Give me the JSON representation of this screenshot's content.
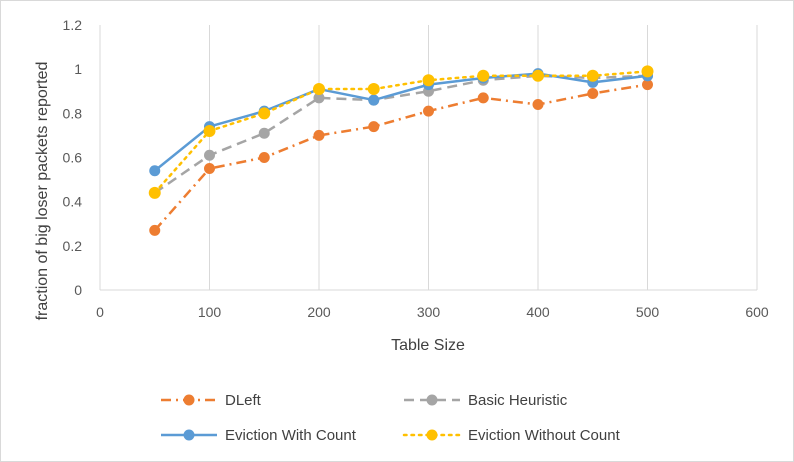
{
  "chart_data": {
    "type": "line",
    "title": "",
    "xlabel": "Table Size",
    "ylabel": "fraction of big loser packets reported",
    "xlim": [
      0,
      600
    ],
    "ylim": [
      0,
      1.2
    ],
    "xticks": [
      "0",
      "100",
      "200",
      "300",
      "400",
      "500",
      "600"
    ],
    "yticks": [
      "0",
      "0.2",
      "0.4",
      "0.6",
      "0.8",
      "1",
      "1.2"
    ],
    "grid": "vertical",
    "legend_position": "bottom",
    "x": [
      50,
      100,
      150,
      200,
      250,
      300,
      350,
      400,
      450,
      500
    ],
    "series": [
      {
        "name": "DLeft",
        "color": "#ED7D31",
        "style": "dash-dot",
        "marker": "circle",
        "values": [
          0.27,
          0.55,
          0.6,
          0.7,
          0.74,
          0.81,
          0.87,
          0.84,
          0.89,
          0.93
        ]
      },
      {
        "name": "Basic Heuristic",
        "color": "#A5A5A5",
        "style": "dash",
        "marker": "circle",
        "values": [
          0.44,
          0.61,
          0.71,
          0.87,
          0.86,
          0.9,
          0.95,
          0.97,
          0.96,
          0.97
        ]
      },
      {
        "name": "Eviction With Count",
        "color": "#5B9BD5",
        "style": "solid",
        "marker": "circle",
        "values": [
          0.54,
          0.74,
          0.81,
          0.91,
          0.86,
          0.93,
          0.96,
          0.98,
          0.94,
          0.97
        ]
      },
      {
        "name": "Eviction Without Count",
        "color": "#FFC000",
        "style": "dot",
        "marker": "circle",
        "values": [
          0.44,
          0.72,
          0.8,
          0.91,
          0.91,
          0.95,
          0.97,
          0.97,
          0.97,
          0.99
        ]
      }
    ]
  }
}
